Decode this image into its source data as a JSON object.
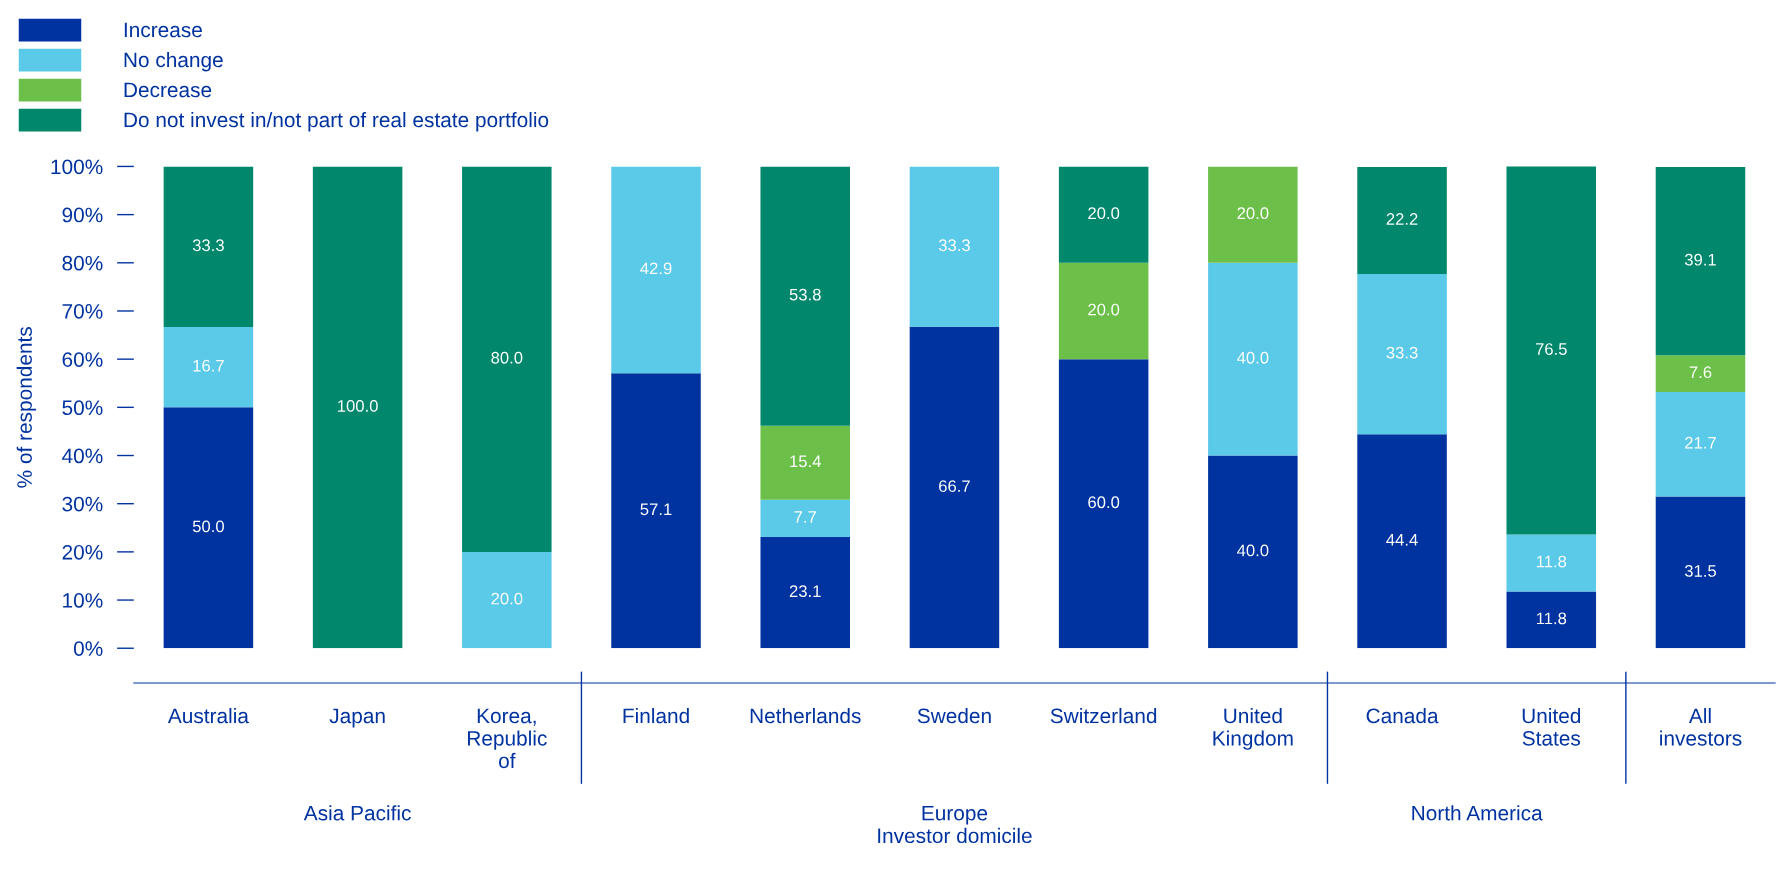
{
  "chart_data": {
    "type": "bar",
    "stacked": true,
    "categories": [
      "Australia",
      "Japan",
      "Korea,\nRepublic\nof",
      "Finland",
      "Netherlands",
      "Sweden",
      "Switzerland",
      "United\nKingdom",
      "Canada",
      "United\nStates",
      "All\ninvestors"
    ],
    "series": [
      {
        "name": "Increase",
        "color": "#0033a0",
        "values": [
          50.0,
          0,
          0,
          57.1,
          23.1,
          66.7,
          60.0,
          40.0,
          44.4,
          11.8,
          31.5
        ],
        "value_labels": [
          "50.0",
          null,
          null,
          "57.1",
          "23.1",
          "66.7",
          "60.0",
          "40.0",
          "44.4",
          "11.8",
          "31.5"
        ]
      },
      {
        "name": "No change",
        "color": "#5bc9e8",
        "values": [
          16.7,
          0,
          20.0,
          42.9,
          7.7,
          33.3,
          0,
          40.0,
          33.3,
          11.8,
          21.7
        ],
        "value_labels": [
          "16.7",
          null,
          "20.0",
          "42.9",
          "7.7",
          "33.3",
          null,
          "40.0",
          "33.3",
          "11.8",
          "21.7"
        ]
      },
      {
        "name": "Decrease",
        "color": "#6cc04a",
        "values": [
          0,
          0,
          0,
          0,
          15.4,
          0,
          20.0,
          20.0,
          0,
          0,
          7.6
        ],
        "value_labels": [
          null,
          null,
          null,
          null,
          "15.4",
          null,
          "20.0",
          "20.0",
          null,
          null,
          "7.6"
        ]
      },
      {
        "name": "Do not invest in/not part of real estate portfolio",
        "color": "#00876c",
        "values": [
          33.3,
          100.0,
          80.0,
          0,
          53.8,
          0,
          20.0,
          0,
          22.2,
          76.5,
          39.1
        ],
        "value_labels": [
          "33.3",
          "100.0",
          "80.0",
          null,
          "53.8",
          null,
          "20.0",
          null,
          "22.2",
          "76.5",
          "39.1"
        ]
      }
    ],
    "ylim": [
      0,
      100
    ],
    "yticks": [
      {
        "value": 0,
        "label": "0%"
      },
      {
        "value": 10,
        "label": "10%"
      },
      {
        "value": 20,
        "label": "20%"
      },
      {
        "value": 30,
        "label": "30%"
      },
      {
        "value": 40,
        "label": "40%"
      },
      {
        "value": 50,
        "label": "50%"
      },
      {
        "value": 60,
        "label": "60%"
      },
      {
        "value": 70,
        "label": "70%"
      },
      {
        "value": 80,
        "label": "80%"
      },
      {
        "value": 90,
        "label": "90%"
      },
      {
        "value": 100,
        "label": "100%"
      }
    ],
    "ylabel": "% of respondents",
    "xlabel": "Investor domicile",
    "annotations": [
      "Asia Pacific",
      "Europe",
      "North America"
    ],
    "legend": "top left",
    "grid": false
  }
}
